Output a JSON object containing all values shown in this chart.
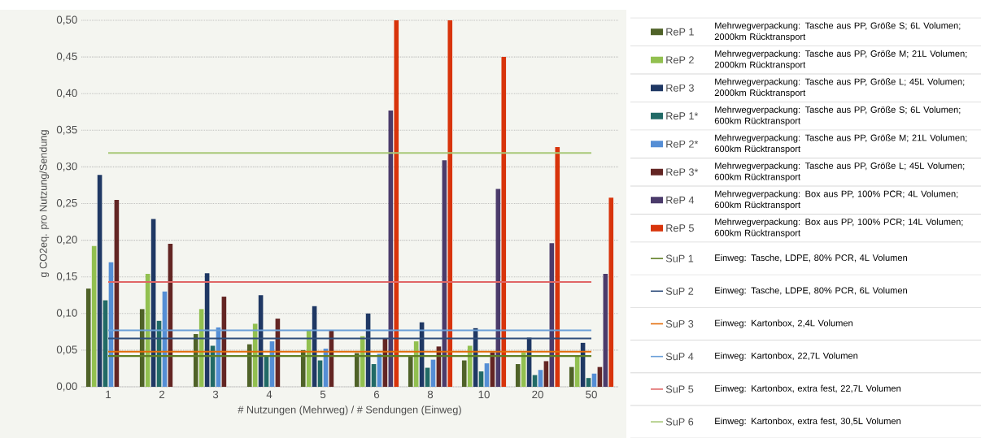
{
  "chart_data": {
    "type": "bar",
    "xlabel": "#  Nutzungen (Mehrweg) / # Sendungen (Einweg)",
    "ylabel": "g CO2eq. pro Nutzung/Sendung",
    "categories": [
      "1",
      "2",
      "3",
      "4",
      "5",
      "6",
      "8",
      "10",
      "20",
      "50"
    ],
    "ylim": [
      0,
      0.5
    ],
    "yticks": [
      {
        "value": 0,
        "label": "0,00"
      },
      {
        "value": 0.05,
        "label": "0,05"
      },
      {
        "value": 0.1,
        "label": "0,10"
      },
      {
        "value": 0.15,
        "label": "0,15"
      },
      {
        "value": 0.2,
        "label": "0,20"
      },
      {
        "value": 0.25,
        "label": "0,25"
      },
      {
        "value": 0.3,
        "label": "0,30"
      },
      {
        "value": 0.35,
        "label": "0,35"
      },
      {
        "value": 0.4,
        "label": "0,40"
      },
      {
        "value": 0.45,
        "label": "0,45"
      },
      {
        "value": 0.5,
        "label": "0,50"
      }
    ],
    "grid": "y",
    "legend": "right",
    "annotations": [
      "Mehrwegverpackung: Tasche aus PP, Größe S; 6L Volumen; 2000km Rücktransport",
      "Mehrwegverpackung: Tasche aus PP, Größe M; 21L Volumen; 2000km Rücktransport",
      "Mehrwegverpackung: Tasche aus PP, Größe L; 45L Volumen; 2000km Rücktransport",
      "Mehrwegverpackung: Tasche aus PP, Größe S; 6L Volumen; 600km Rücktransport",
      "Mehrwegverpackung: Tasche aus PP, Größe M; 21L Volumen; 600km Rücktransport",
      "Mehrwegverpackung: Tasche aus PP, Größe L; 45L Volumen; 600km Rücktransport",
      "Mehrwegverpackung: Box aus PP, 100% PCR; 4L Volumen; 600km Rücktransport",
      "Mehrwegverpackung: Box aus PP, 100% PCR; 14L Volumen; 600km Rücktransport",
      "Einweg: Tasche, LDPE, 80% PCR, 4L Volumen",
      "Einweg: Tasche, LDPE, 80% PCR, 6L Volumen",
      "Einweg: Kartonbox, 2,4L Volumen",
      "Einweg: Kartonbox, 22,7L Volumen",
      "Einweg: Kartonbox, extra fest, 22,7L Volumen",
      "Einweg: Kartonbox, extra fest, 30,5L Volumen"
    ],
    "series": [
      {
        "name": "ReP 1",
        "color": "#4f6228",
        "values": [
          0.134,
          0.106,
          0.072,
          0.058,
          0.05,
          0.046,
          0.041,
          0.036,
          0.031,
          0.027
        ]
      },
      {
        "name": "ReP 2",
        "color": "#92c050",
        "values": [
          0.192,
          0.154,
          0.106,
          0.086,
          0.077,
          0.069,
          0.062,
          0.056,
          0.047,
          0.042
        ]
      },
      {
        "name": "ReP 3",
        "color": "#1f3864",
        "values": [
          0.289,
          0.229,
          0.155,
          0.125,
          0.11,
          0.1,
          0.088,
          0.08,
          0.067,
          0.06
        ]
      },
      {
        "name": "ReP 1*",
        "color": "#216a66",
        "values": [
          0.118,
          0.09,
          0.056,
          0.041,
          0.036,
          0.031,
          0.026,
          0.021,
          0.016,
          0.012
        ]
      },
      {
        "name": "ReP 2*",
        "color": "#558ed5",
        "values": [
          0.17,
          0.13,
          0.081,
          0.062,
          0.052,
          0.045,
          0.037,
          0.032,
          0.023,
          0.018
        ]
      },
      {
        "name": "ReP 3*",
        "color": "#632523",
        "values": [
          0.255,
          0.195,
          0.123,
          0.093,
          0.077,
          0.066,
          0.055,
          0.047,
          0.035,
          0.027
        ]
      },
      {
        "name": "ReP 4",
        "color": "#4b3b6b",
        "values": [
          null,
          null,
          null,
          null,
          null,
          0.377,
          0.309,
          0.27,
          0.196,
          0.154
        ]
      },
      {
        "name": "ReP 5",
        "color": "#d8340b",
        "values": [
          null,
          null,
          null,
          null,
          null,
          0.5,
          0.5,
          0.45,
          0.327,
          0.258
        ]
      },
      {
        "name": "SuP 1",
        "type": "line",
        "color": "#5f7f24",
        "values": [
          0.042,
          0.042,
          0.042,
          0.042,
          0.042,
          0.042,
          0.042,
          0.042,
          0.042,
          0.042
        ]
      },
      {
        "name": "SuP 2",
        "type": "line",
        "color": "#2e4d7b",
        "values": [
          0.066,
          0.066,
          0.066,
          0.066,
          0.066,
          0.066,
          0.066,
          0.066,
          0.066,
          0.066
        ]
      },
      {
        "name": "SuP 3",
        "type": "line",
        "color": "#e36c09",
        "values": [
          0.048,
          0.048,
          0.048,
          0.048,
          0.048,
          0.048,
          0.048,
          0.048,
          0.048,
          0.048
        ]
      },
      {
        "name": "SuP 4",
        "type": "line",
        "color": "#6a9fd8",
        "values": [
          0.077,
          0.077,
          0.077,
          0.077,
          0.077,
          0.077,
          0.077,
          0.077,
          0.077,
          0.077
        ]
      },
      {
        "name": "SuP 5",
        "type": "line",
        "color": "#e06666",
        "values": [
          0.143,
          0.143,
          0.143,
          0.143,
          0.143,
          0.143,
          0.143,
          0.143,
          0.143,
          0.143
        ]
      },
      {
        "name": "SuP 6",
        "type": "line",
        "color": "#a8c878",
        "values": [
          0.319,
          0.319,
          0.319,
          0.319,
          0.319,
          0.319,
          0.319,
          0.319,
          0.319,
          0.319
        ]
      }
    ]
  }
}
